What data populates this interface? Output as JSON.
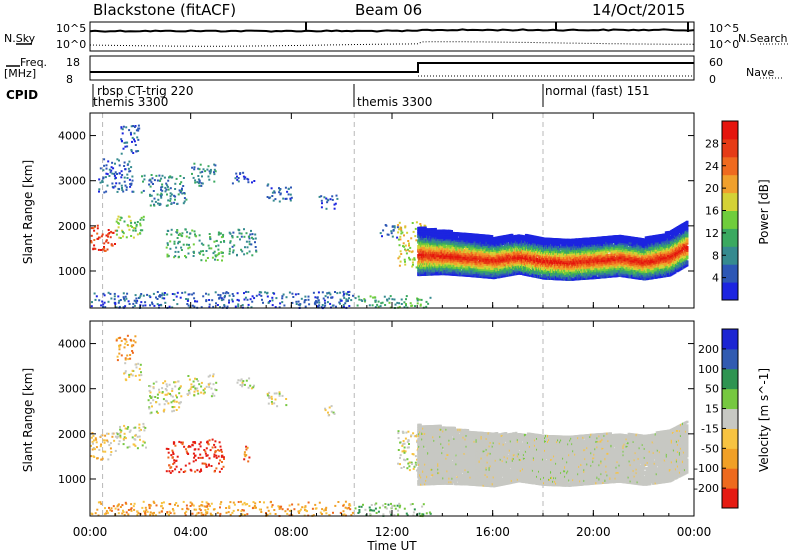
{
  "header": {
    "station": "Blackstone (fitACF)",
    "beam": "Beam 06",
    "date": "14/Oct/2015"
  },
  "aux": {
    "nsky_label": "N.Sky",
    "nsearch_label": "N.Search",
    "nsky_ticks": [
      "10^5",
      "10^0"
    ],
    "nsearch_ticks": [
      "10^5",
      "10^0"
    ],
    "freq_label_1": "Freq.",
    "freq_label_2": "[MHz]",
    "freq_ticks": [
      "18",
      "8"
    ],
    "nave_label": "Nave",
    "nave_ticks": [
      "60",
      "0"
    ],
    "cpid_label": "CPID",
    "cpid_segments": [
      {
        "name": "rbsp CT-trig 220",
        "start_h": 0.0
      },
      {
        "name": "themis 3300",
        "start_h": 0.0
      },
      {
        "name": "themis 3300",
        "start_h": 10.5
      },
      {
        "name": "normal (fast) 151",
        "start_h": 18.0
      }
    ]
  },
  "chart_data": [
    {
      "type": "heatmap",
      "name": "power-panel",
      "ylabel": "Slant Range [km]",
      "yticks": [
        "1000",
        "2000",
        "3000",
        "4000"
      ],
      "ylim": [
        180,
        4500
      ],
      "xlim": [
        0,
        24
      ],
      "colorbar_label": "Power [dB]",
      "colorbar_ticks": [
        "4",
        "8",
        "12",
        "16",
        "20",
        "24",
        "28"
      ],
      "colors": [
        "#1c24e0",
        "#2d57b5",
        "#358a8f",
        "#3aa960",
        "#6fcd3c",
        "#d4d236",
        "#f0a02c",
        "#ef6a1f",
        "#e63b16",
        "#e5140d"
      ],
      "dashed_time_h": [
        0.5,
        10.5,
        18.0
      ],
      "features": [
        {
          "t0": 0.0,
          "t1": 1.0,
          "r0": 1450,
          "r1": 2050,
          "level": 8
        },
        {
          "t0": 1.0,
          "t1": 2.2,
          "r0": 1750,
          "r1": 2250,
          "level": 4
        },
        {
          "t0": 0.3,
          "t1": 1.7,
          "r0": 2750,
          "r1": 3500,
          "level": 1
        },
        {
          "t0": 1.2,
          "t1": 2.0,
          "r0": 3600,
          "r1": 4250,
          "level": 1
        },
        {
          "t0": 2.0,
          "t1": 3.8,
          "r0": 2450,
          "r1": 3150,
          "level": 2
        },
        {
          "t0": 3.0,
          "t1": 4.2,
          "r0": 1300,
          "r1": 1950,
          "level": 3
        },
        {
          "t0": 4.3,
          "t1": 5.3,
          "r0": 1250,
          "r1": 1900,
          "level": 3
        },
        {
          "t0": 4.0,
          "t1": 5.0,
          "r0": 2900,
          "r1": 3400,
          "level": 2
        },
        {
          "t0": 5.5,
          "t1": 6.6,
          "r0": 1350,
          "r1": 1950,
          "level": 2
        },
        {
          "t0": 5.6,
          "t1": 6.5,
          "r0": 2950,
          "r1": 3200,
          "level": 1
        },
        {
          "t0": 7.0,
          "t1": 8.0,
          "r0": 2550,
          "r1": 2950,
          "level": 1
        },
        {
          "t0": 9.0,
          "t1": 9.8,
          "r0": 2400,
          "r1": 2700,
          "level": 1
        },
        {
          "t0": 11.5,
          "t1": 12.3,
          "r0": 1750,
          "r1": 2050,
          "level": 1
        },
        {
          "t0": 12.2,
          "t1": 13.3,
          "r0": 1100,
          "r1": 2100,
          "level": 5
        },
        {
          "t0": 0.0,
          "t1": 10.5,
          "r0": 200,
          "r1": 560,
          "level": 1
        },
        {
          "t0": 10.5,
          "t1": 13.5,
          "r0": 200,
          "r1": 480,
          "level": 3
        }
      ],
      "band": [
        {
          "t": 13.0,
          "center": 1380,
          "half_width": 420
        },
        {
          "t": 14.0,
          "center": 1360,
          "half_width": 380
        },
        {
          "t": 15.0,
          "center": 1310,
          "half_width": 370
        },
        {
          "t": 16.0,
          "center": 1250,
          "half_width": 360
        },
        {
          "t": 17.0,
          "center": 1330,
          "half_width": 340
        },
        {
          "t": 18.0,
          "center": 1240,
          "half_width": 360
        },
        {
          "t": 19.0,
          "center": 1210,
          "half_width": 360
        },
        {
          "t": 20.0,
          "center": 1250,
          "half_width": 360
        },
        {
          "t": 21.0,
          "center": 1300,
          "half_width": 360
        },
        {
          "t": 22.0,
          "center": 1220,
          "half_width": 360
        },
        {
          "t": 23.0,
          "center": 1330,
          "half_width": 380
        },
        {
          "t": 23.7,
          "center": 1560,
          "half_width": 380
        }
      ]
    },
    {
      "type": "heatmap",
      "name": "velocity-panel",
      "ylabel": "Slant Range [km]",
      "yticks": [
        "1000",
        "2000",
        "3000",
        "4000"
      ],
      "ylim": [
        180,
        4500
      ],
      "xlim": [
        0,
        24
      ],
      "colorbar_label": "Velocity [m s^-1]",
      "colorbar_ticks": [
        "-200",
        "-100",
        "-50",
        "-15",
        "15",
        "50",
        "100",
        "200"
      ],
      "colors": [
        "#e51b12",
        "#ee6a1e",
        "#f1a026",
        "#f7c341",
        "#c7c8c3",
        "#76c840",
        "#2f9451",
        "#315bb1",
        "#1c25d3"
      ],
      "dashed_time_h": [
        0.5,
        10.5,
        18.0
      ],
      "features": [
        {
          "t0": 0.0,
          "t1": 1.0,
          "r0": 1450,
          "r1": 2050,
          "level": 3
        },
        {
          "t0": 1.0,
          "t1": 2.2,
          "r0": 1700,
          "r1": 2250,
          "level": 4
        },
        {
          "t0": 1.3,
          "t1": 2.0,
          "r0": 3200,
          "r1": 3600,
          "level": 4
        },
        {
          "t0": 1.0,
          "t1": 1.8,
          "r0": 3650,
          "r1": 4200,
          "level": 2
        },
        {
          "t0": 2.2,
          "t1": 3.6,
          "r0": 2450,
          "r1": 3200,
          "level": 4
        },
        {
          "t0": 3.0,
          "t1": 4.2,
          "r0": 1150,
          "r1": 1850,
          "level": 0
        },
        {
          "t0": 4.2,
          "t1": 5.3,
          "r0": 1150,
          "r1": 1900,
          "level": 0
        },
        {
          "t0": 3.8,
          "t1": 5.0,
          "r0": 2850,
          "r1": 3350,
          "level": 4
        },
        {
          "t0": 6.0,
          "t1": 6.3,
          "r0": 1350,
          "r1": 1750,
          "level": 1
        },
        {
          "t0": 5.8,
          "t1": 6.5,
          "r0": 2950,
          "r1": 3250,
          "level": 4
        },
        {
          "t0": 7.0,
          "t1": 7.8,
          "r0": 2600,
          "r1": 2950,
          "level": 4
        },
        {
          "t0": 9.3,
          "t1": 9.7,
          "r0": 2400,
          "r1": 2650,
          "level": 4
        },
        {
          "t0": 12.2,
          "t1": 13.3,
          "r0": 1200,
          "r1": 2100,
          "level": 4
        },
        {
          "t0": 0.0,
          "t1": 10.5,
          "r0": 200,
          "r1": 520,
          "level": 2
        },
        {
          "t0": 10.5,
          "t1": 13.5,
          "r0": 200,
          "r1": 480,
          "level": 5
        }
      ],
      "band": [
        {
          "t": 13.0,
          "center": 1450,
          "half_width": 520
        },
        {
          "t": 14.0,
          "center": 1450,
          "half_width": 500
        },
        {
          "t": 15.0,
          "center": 1400,
          "half_width": 470
        },
        {
          "t": 16.0,
          "center": 1350,
          "half_width": 460
        },
        {
          "t": 17.0,
          "center": 1420,
          "half_width": 420
        },
        {
          "t": 18.0,
          "center": 1350,
          "half_width": 430
        },
        {
          "t": 19.0,
          "center": 1330,
          "half_width": 430
        },
        {
          "t": 20.0,
          "center": 1380,
          "half_width": 430
        },
        {
          "t": 21.0,
          "center": 1410,
          "half_width": 420
        },
        {
          "t": 22.0,
          "center": 1350,
          "half_width": 430
        },
        {
          "t": 23.0,
          "center": 1450,
          "half_width": 450
        },
        {
          "t": 23.7,
          "center": 1650,
          "half_width": 450
        }
      ]
    }
  ],
  "xaxis": {
    "label": "Time UT",
    "ticks": [
      {
        "h": 0,
        "label": "00:00"
      },
      {
        "h": 4,
        "label": "04:00"
      },
      {
        "h": 8,
        "label": "08:00"
      },
      {
        "h": 12,
        "label": "12:00"
      },
      {
        "h": 16,
        "label": "16:00"
      },
      {
        "h": 20,
        "label": "20:00"
      },
      {
        "h": 24,
        "label": "00:00"
      }
    ]
  }
}
